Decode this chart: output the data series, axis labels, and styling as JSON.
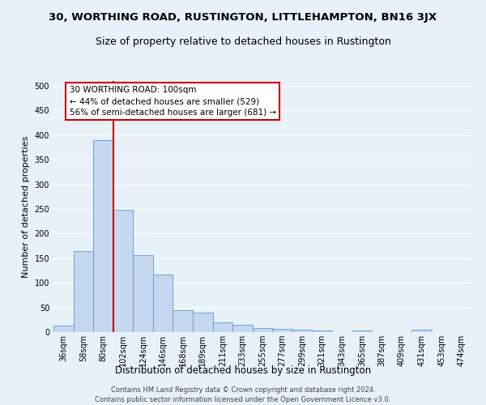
{
  "title": "30, WORTHING ROAD, RUSTINGTON, LITTLEHAMPTON, BN16 3JX",
  "subtitle": "Size of property relative to detached houses in Rustington",
  "xlabel": "Distribution of detached houses by size in Rustington",
  "ylabel": "Number of detached properties",
  "bar_color": "#c5d8f0",
  "bar_edge_color": "#5b9bd5",
  "categories": [
    "36sqm",
    "58sqm",
    "80sqm",
    "102sqm",
    "124sqm",
    "146sqm",
    "168sqm",
    "189sqm",
    "211sqm",
    "233sqm",
    "255sqm",
    "277sqm",
    "299sqm",
    "321sqm",
    "343sqm",
    "365sqm",
    "387sqm",
    "409sqm",
    "431sqm",
    "453sqm",
    "474sqm"
  ],
  "values": [
    13,
    165,
    390,
    248,
    157,
    116,
    44,
    39,
    19,
    14,
    8,
    6,
    5,
    4,
    0,
    4,
    0,
    0,
    5,
    0,
    0
  ],
  "ylim": [
    0,
    510
  ],
  "yticks": [
    0,
    50,
    100,
    150,
    200,
    250,
    300,
    350,
    400,
    450,
    500
  ],
  "vline_x": 2.5,
  "vline_color": "#cc0000",
  "annotation_text": "30 WORTHING ROAD: 100sqm\n← 44% of detached houses are smaller (529)\n56% of semi-detached houses are larger (681) →",
  "annotation_box_color": "#ffffff",
  "annotation_box_edge": "#cc0000",
  "footer_line1": "Contains HM Land Registry data © Crown copyright and database right 2024.",
  "footer_line2": "Contains public sector information licensed under the Open Government Licence v3.0.",
  "background_color": "#e8f0f8",
  "grid_color": "#ffffff",
  "title_fontsize": 9.5,
  "subtitle_fontsize": 9,
  "xlabel_fontsize": 8.5,
  "ylabel_fontsize": 8,
  "tick_fontsize": 7,
  "footer_fontsize": 6
}
